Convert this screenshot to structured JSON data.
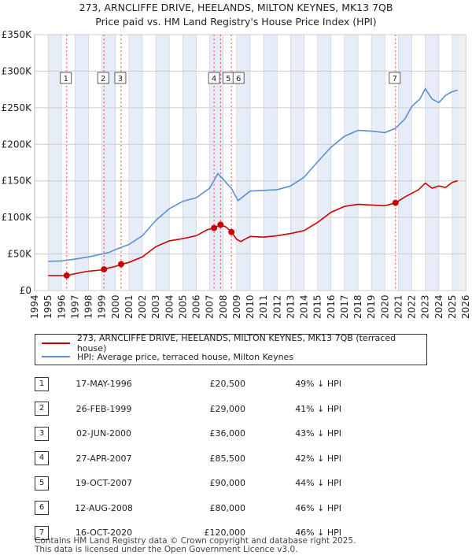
{
  "title_line1": "273, ARNCLIFFE DRIVE, HEELANDS, MILTON KEYNES, MK13 7QB",
  "title_line2": "Price paid vs. HM Land Registry's House Price Index (HPI)",
  "colors": {
    "property": "#cc0000",
    "hpi": "#5b8fd4",
    "shade": "#e6edf8",
    "grid": "#cccccc",
    "marker_line": "#ff4444"
  },
  "chart_data": {
    "type": "line",
    "ylim": [
      0,
      350000
    ],
    "xlim": [
      1994,
      2026
    ],
    "ytick_labels": [
      "£0",
      "£50K",
      "£100K",
      "£150K",
      "£200K",
      "£250K",
      "£300K",
      "£350K"
    ],
    "ytick_values": [
      0,
      50000,
      100000,
      150000,
      200000,
      250000,
      300000,
      350000
    ],
    "xtick_labels": [
      "1994",
      "1995",
      "1996",
      "1997",
      "1998",
      "1999",
      "2000",
      "2001",
      "2002",
      "2003",
      "2004",
      "2005",
      "2006",
      "2007",
      "2008",
      "2009",
      "2010",
      "2011",
      "2012",
      "2013",
      "2014",
      "2015",
      "2016",
      "2017",
      "2018",
      "2019",
      "2020",
      "2021",
      "2022",
      "2023",
      "2024",
      "2025",
      "2026"
    ],
    "series": [
      {
        "name": "273, ARNCLIFFE DRIVE, HEELANDS, MILTON KEYNES, MK13 7QB (terraced house)",
        "points": [
          [
            1995.0,
            20500
          ],
          [
            1996.0,
            20500
          ],
          [
            1996.38,
            20500
          ],
          [
            1997.0,
            23000
          ],
          [
            1998.0,
            26500
          ],
          [
            1998.9,
            28000
          ],
          [
            1999.15,
            29000
          ],
          [
            1999.6,
            31500
          ],
          [
            2000.0,
            33000
          ],
          [
            2000.42,
            36000
          ],
          [
            2001.0,
            38500
          ],
          [
            2002.0,
            46000
          ],
          [
            2003.0,
            60000
          ],
          [
            2004.0,
            68000
          ],
          [
            2005.0,
            71000
          ],
          [
            2006.0,
            75000
          ],
          [
            2006.8,
            83000
          ],
          [
            2007.32,
            85500
          ],
          [
            2007.8,
            90000
          ],
          [
            2008.2,
            87000
          ],
          [
            2008.61,
            80000
          ],
          [
            2009.0,
            70000
          ],
          [
            2009.3,
            67000
          ],
          [
            2010.0,
            74000
          ],
          [
            2011.0,
            73000
          ],
          [
            2012.0,
            75000
          ],
          [
            2013.0,
            78000
          ],
          [
            2014.0,
            82000
          ],
          [
            2015.0,
            93000
          ],
          [
            2016.0,
            107000
          ],
          [
            2017.0,
            115000
          ],
          [
            2018.0,
            118000
          ],
          [
            2019.0,
            117000
          ],
          [
            2020.0,
            116000
          ],
          [
            2020.79,
            120000
          ],
          [
            2021.5,
            128000
          ],
          [
            2022.5,
            138000
          ],
          [
            2023.0,
            147000
          ],
          [
            2023.5,
            140000
          ],
          [
            2024.0,
            143000
          ],
          [
            2024.5,
            141000
          ],
          [
            2025.0,
            148000
          ],
          [
            2025.4,
            150000
          ]
        ]
      },
      {
        "name": "HPI: Average price, terraced house, Milton Keynes",
        "points": [
          [
            1995.0,
            40000
          ],
          [
            1996.0,
            40500
          ],
          [
            1996.38,
            41500
          ],
          [
            1997.0,
            43000
          ],
          [
            1998.0,
            46000
          ],
          [
            1999.0,
            50000
          ],
          [
            1999.5,
            52000
          ],
          [
            2000.0,
            56000
          ],
          [
            2001.0,
            63000
          ],
          [
            2002.0,
            75000
          ],
          [
            2003.0,
            96000
          ],
          [
            2004.0,
            112000
          ],
          [
            2005.0,
            122000
          ],
          [
            2006.0,
            127000
          ],
          [
            2007.0,
            140000
          ],
          [
            2007.6,
            160000
          ],
          [
            2008.0,
            152000
          ],
          [
            2008.6,
            140000
          ],
          [
            2009.1,
            123000
          ],
          [
            2010.0,
            136000
          ],
          [
            2011.0,
            137000
          ],
          [
            2012.0,
            138000
          ],
          [
            2013.0,
            143000
          ],
          [
            2014.0,
            155000
          ],
          [
            2015.0,
            176000
          ],
          [
            2016.0,
            196000
          ],
          [
            2017.0,
            211000
          ],
          [
            2018.0,
            219000
          ],
          [
            2019.0,
            218000
          ],
          [
            2020.0,
            216000
          ],
          [
            2020.8,
            222000
          ],
          [
            2021.5,
            235000
          ],
          [
            2022.0,
            252000
          ],
          [
            2022.6,
            262000
          ],
          [
            2023.0,
            276000
          ],
          [
            2023.5,
            262000
          ],
          [
            2024.0,
            257000
          ],
          [
            2024.5,
            267000
          ],
          [
            2025.0,
            272000
          ],
          [
            2025.4,
            274000
          ]
        ]
      }
    ],
    "sales": [
      {
        "n": "1",
        "year": 1996.38,
        "price": 20500
      },
      {
        "n": "2",
        "year": 1999.15,
        "price": 29000
      },
      {
        "n": "3",
        "year": 2000.42,
        "price": 36000
      },
      {
        "n": "4",
        "year": 2007.32,
        "price": 85500
      },
      {
        "n": "5",
        "year": 2007.8,
        "price": 90000
      },
      {
        "n": "6",
        "year": 2008.61,
        "price": 80000
      },
      {
        "n": "7",
        "year": 2020.79,
        "price": 120000
      }
    ]
  },
  "legend": {
    "property_label": "273, ARNCLIFFE DRIVE, HEELANDS, MILTON KEYNES, MK13 7QB (terraced house)",
    "hpi_label": "HPI: Average price, terraced house, Milton Keynes"
  },
  "table": [
    {
      "n": "1",
      "date": "17-MAY-1996",
      "price": "£20,500",
      "hpi": "49% ↓ HPI"
    },
    {
      "n": "2",
      "date": "26-FEB-1999",
      "price": "£29,000",
      "hpi": "41% ↓ HPI"
    },
    {
      "n": "3",
      "date": "02-JUN-2000",
      "price": "£36,000",
      "hpi": "43% ↓ HPI"
    },
    {
      "n": "4",
      "date": "27-APR-2007",
      "price": "£85,500",
      "hpi": "42% ↓ HPI"
    },
    {
      "n": "5",
      "date": "19-OCT-2007",
      "price": "£90,000",
      "hpi": "44% ↓ HPI"
    },
    {
      "n": "6",
      "date": "12-AUG-2008",
      "price": "£80,000",
      "hpi": "46% ↓ HPI"
    },
    {
      "n": "7",
      "date": "16-OCT-2020",
      "price": "£120,000",
      "hpi": "46% ↓ HPI"
    }
  ],
  "footer_line1": "Contains HM Land Registry data © Crown copyright and database right 2025.",
  "footer_line2": "This data is licensed under the Open Government Licence v3.0."
}
